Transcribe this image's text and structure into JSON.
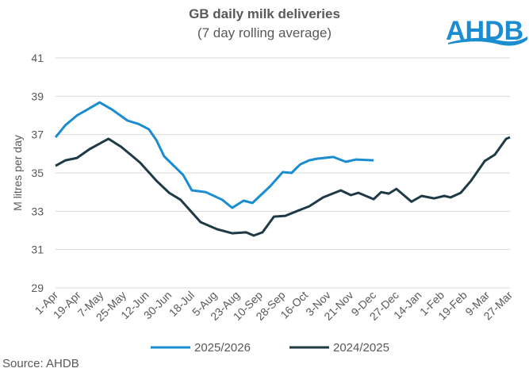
{
  "logo": {
    "text": "AHDB",
    "color": "#1a8cd0"
  },
  "source": "Source: AHDB",
  "chart_data": {
    "type": "line",
    "title": "GB daily milk deliveries",
    "subtitle": "(7 day rolling average)",
    "ylabel": "M litres per day",
    "xlabel": "",
    "ylim": [
      29,
      41
    ],
    "yticks": [
      "29",
      "31",
      "33",
      "35",
      "37",
      "39",
      "41"
    ],
    "xticks": [
      "1-Apr",
      "19-Apr",
      "7-May",
      "25-May",
      "12-Jun",
      "30-Jun",
      "18-Jul",
      "5-Aug",
      "23-Aug",
      "10-Sep",
      "28-Sep",
      "16-Oct",
      "3-Nov",
      "21-Nov",
      "9-Dec",
      "27-Dec",
      "14-Jan",
      "1-Feb",
      "19-Feb",
      "9-Mar",
      "27-Mar"
    ],
    "grid": "horizontal",
    "legend": "bottom",
    "series": [
      {
        "name": "2025/2026",
        "color": "#1a8cd0",
        "x": [
          "1-Apr",
          "9-Apr",
          "18-Apr",
          "26-Apr",
          "6-May",
          "16-May",
          "28-May",
          "6-Jun",
          "14-Jun",
          "20-Jun",
          "26-Jun",
          "11-Jul",
          "18-Jul",
          "29-Jul",
          "11-Aug",
          "19-Aug",
          "28-Aug",
          "4-Sep",
          "18-Sep",
          "28-Sep",
          "5-Oct",
          "12-Oct",
          "19-Oct",
          "25-Oct",
          "7-Nov",
          "17-Nov",
          "25-Nov",
          "9-Dec"
        ],
        "y": [
          36.86,
          37.5,
          38.0,
          38.3,
          38.68,
          38.3,
          37.73,
          37.55,
          37.27,
          36.7,
          35.87,
          34.9,
          34.09,
          34.0,
          33.6,
          33.18,
          33.55,
          33.43,
          34.3,
          35.04,
          35.0,
          35.45,
          35.66,
          35.74,
          35.83,
          35.58,
          35.7,
          35.66
        ]
      },
      {
        "name": "2024/2025",
        "color": "#1e3a46",
        "x": [
          "1-Apr",
          "9-Apr",
          "18-Apr",
          "28-Apr",
          "13-May",
          "23-May",
          "1-Jun",
          "7-Jun",
          "20-Jun",
          "30-Jun",
          "9-Jul",
          "25-Jul",
          "7-Aug",
          "19-Aug",
          "30-Aug",
          "5-Sep",
          "12-Sep",
          "21-Sep",
          "30-Sep",
          "9-Oct",
          "19-Oct",
          "30-Oct",
          "13-Nov",
          "21-Nov",
          "27-Nov",
          "9-Dec",
          "15-Dec",
          "21-Dec",
          "27-Dec",
          "8-Jan",
          "16-Jan",
          "26-Jan",
          "3-Feb",
          "8-Feb",
          "16-Feb",
          "24-Feb",
          "7-Mar",
          "15-Mar",
          "24-Mar",
          "27-Mar"
        ],
        "y": [
          35.37,
          35.66,
          35.78,
          36.24,
          36.78,
          36.36,
          35.87,
          35.54,
          34.59,
          33.96,
          33.6,
          32.43,
          32.06,
          31.85,
          31.9,
          31.73,
          31.9,
          32.72,
          32.76,
          33.0,
          33.26,
          33.72,
          34.09,
          33.84,
          33.96,
          33.63,
          34.0,
          33.92,
          34.17,
          33.5,
          33.8,
          33.67,
          33.8,
          33.72,
          33.96,
          34.58,
          35.62,
          35.95,
          36.78,
          36.86
        ]
      }
    ]
  }
}
